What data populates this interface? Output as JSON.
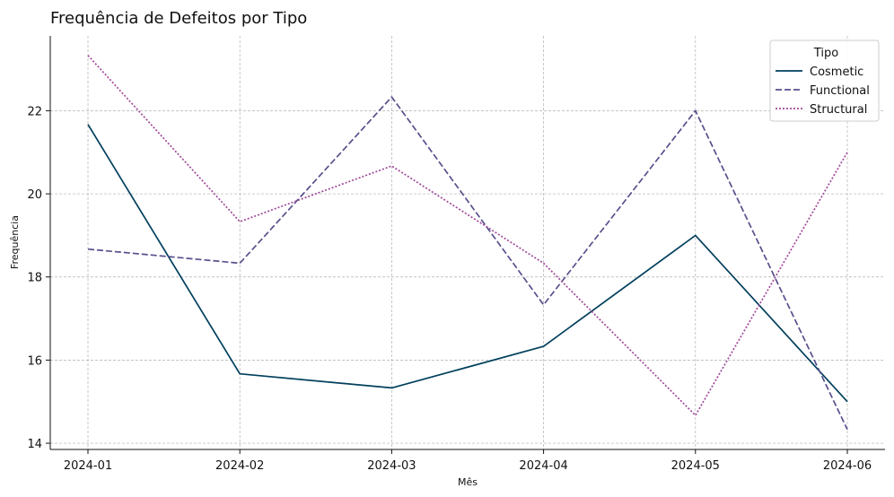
{
  "chart_data": {
    "type": "line",
    "title": "Frequência de Defeitos por Tipo",
    "xlabel": "Mês",
    "ylabel": "Frequência",
    "categories": [
      "2024-01",
      "2024-02",
      "2024-03",
      "2024-04",
      "2024-05",
      "2024-06"
    ],
    "yticks": [
      14,
      16,
      18,
      20,
      22
    ],
    "ylim": [
      13.85,
      23.8
    ],
    "grid": true,
    "legend": {
      "title": "Tipo",
      "placement": "top-right"
    },
    "series": [
      {
        "name": "Cosmetic",
        "style": "solid",
        "color": "#003f5c",
        "values": [
          21.67,
          15.67,
          15.33,
          16.33,
          19.0,
          15.0
        ]
      },
      {
        "name": "Functional",
        "style": "dashed",
        "color": "#58508d",
        "values": [
          18.67,
          18.33,
          22.33,
          17.33,
          22.0,
          14.33
        ]
      },
      {
        "name": "Structural",
        "style": "dotted",
        "color": "#a0489a",
        "values": [
          23.33,
          19.33,
          20.67,
          18.33,
          14.67,
          21.0
        ]
      }
    ]
  }
}
